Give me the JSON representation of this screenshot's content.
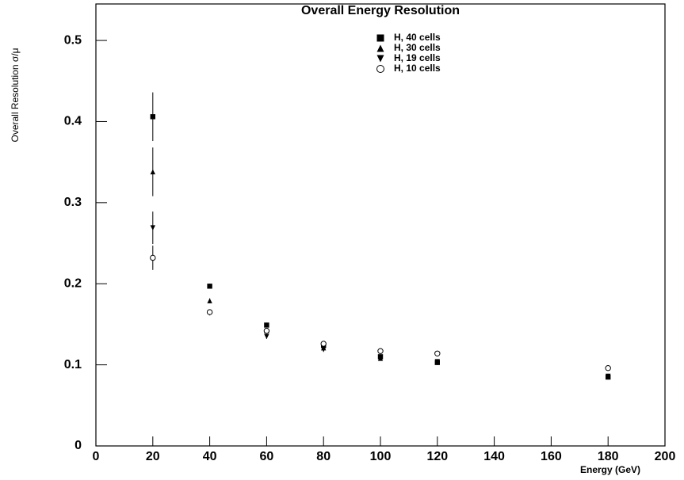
{
  "chart_data": {
    "type": "scatter",
    "title": "Overall Energy Resolution",
    "xlabel": "Energy (GeV)",
    "ylabel": "Overall Resolution σ/μ",
    "x": [
      20,
      40,
      60,
      80,
      100,
      120,
      180
    ],
    "series": [
      {
        "name": "H, 40 cells",
        "color": "#000000",
        "marker": "square",
        "values": [
          0.406,
          0.197,
          0.149,
          0.124,
          0.11,
          0.103,
          0.085
        ],
        "errors": [
          0.03,
          0.003,
          0.003,
          0.003,
          0.003,
          0.003,
          0.003
        ]
      },
      {
        "name": "H, 30 cells",
        "color": "#000000",
        "marker": "triangle-up",
        "values": [
          0.338,
          0.179,
          0.142,
          0.121,
          0.108,
          0.103,
          0.085
        ],
        "errors": [
          0.03,
          0.003,
          0.003,
          0.003,
          0.003,
          0.003,
          0.003
        ]
      },
      {
        "name": "H, 19 cells",
        "color": "#000000",
        "marker": "triangle-down",
        "values": [
          0.269,
          0.164,
          0.135,
          0.119,
          0.109,
          0.104,
          0.086
        ],
        "errors": [
          0.02,
          0.003,
          0.003,
          0.003,
          0.003,
          0.003,
          0.003
        ]
      },
      {
        "name": "H, 10 cells",
        "color": "#000000",
        "marker": "circle-open",
        "values": [
          0.232,
          0.165,
          0.142,
          0.126,
          0.117,
          0.114,
          0.096
        ],
        "errors": [
          0.015,
          0.003,
          0.003,
          0.003,
          0.003,
          0.003,
          0.003
        ]
      }
    ],
    "xlim": [
      0,
      200
    ],
    "xticks": [
      0,
      20,
      40,
      60,
      80,
      100,
      120,
      140,
      160,
      180,
      200
    ],
    "ylim": [
      0,
      0.545
    ],
    "yticks": [
      0,
      0.1,
      0.2,
      0.3,
      0.4,
      0.5
    ],
    "grid": false,
    "legend": "top-center"
  }
}
